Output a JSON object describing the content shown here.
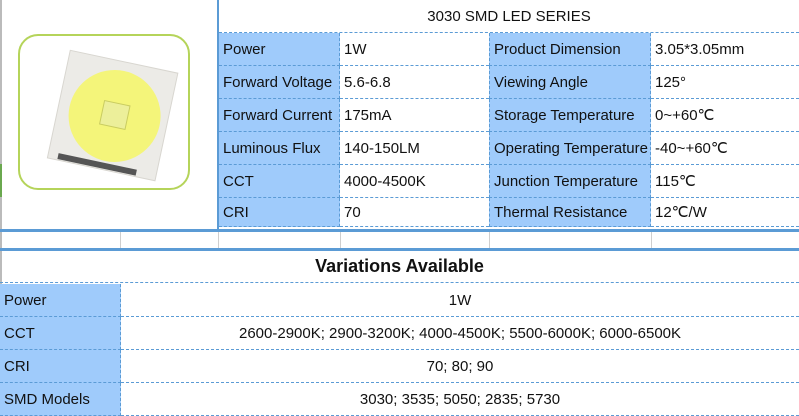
{
  "title": "3030 SMD LED SERIES",
  "specs_left": [
    {
      "label": "Power",
      "value": "1W"
    },
    {
      "label": "Forward Voltage",
      "value": "5.6-6.8"
    },
    {
      "label": "Forward Current",
      "value": "175mA"
    },
    {
      "label": "Luminous Flux",
      "value": "140-150LM"
    },
    {
      "label": "CCT",
      "value": "4000-4500K"
    },
    {
      "label": "CRI",
      "value": "70"
    }
  ],
  "specs_right": [
    {
      "label": "Product Dimension",
      "value": "3.05*3.05mm"
    },
    {
      "label": "Viewing Angle",
      "value": "125°"
    },
    {
      "label": "Storage Temperature",
      "value": "0~+60℃"
    },
    {
      "label": "Operating Temperature",
      "value": "-40~+60℃"
    },
    {
      "label": "Junction Temperature",
      "value": "115℃"
    },
    {
      "label": "Thermal Resistance",
      "value": "12℃/W"
    }
  ],
  "variations": {
    "heading": "Variations Available",
    "rows": [
      {
        "label": "Power",
        "value": "1W"
      },
      {
        "label": "CCT",
        "value": "2600-2900K; 2900-3200K; 4000-4500K; 5500-6000K; 6000-6500K"
      },
      {
        "label": "CRI",
        "value": "70; 80; 90"
      },
      {
        "label": "SMD Models",
        "value": "3030; 3535; 5050; 2835; 5730"
      }
    ]
  },
  "colors": {
    "label_bg": "#9fcbfb",
    "border": "#5b9bd5",
    "frame": "#a8cf45"
  }
}
